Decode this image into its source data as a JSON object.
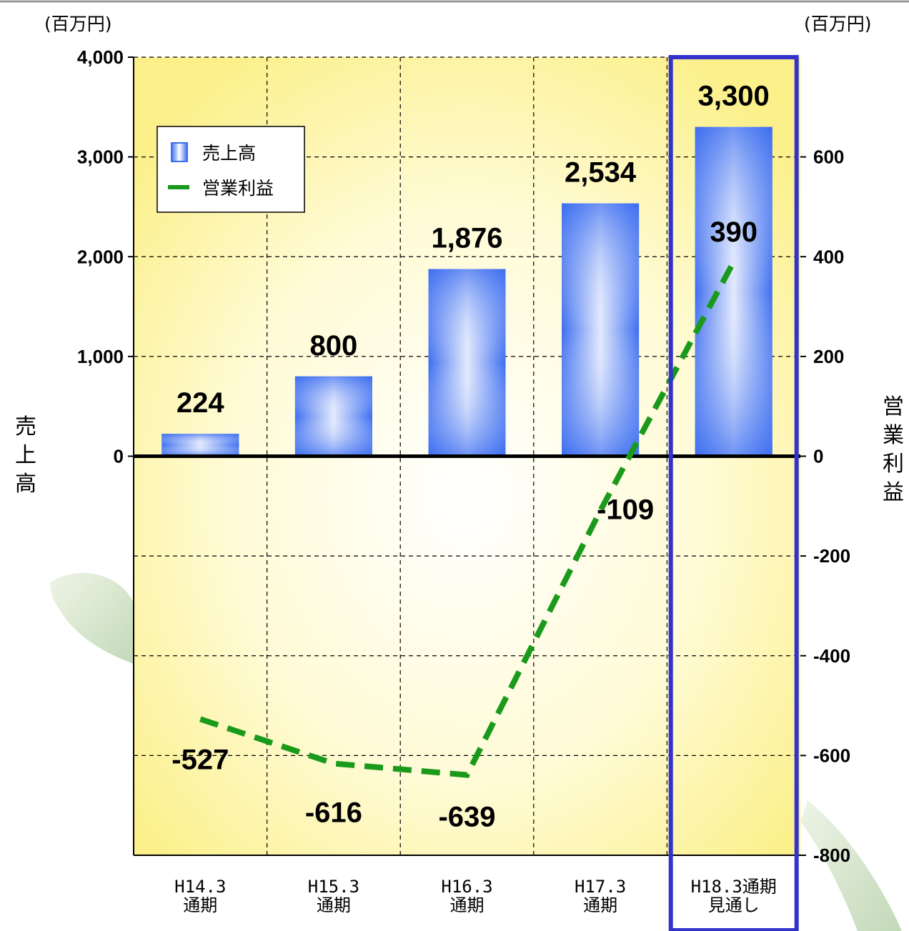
{
  "chart_data": {
    "type": "bar",
    "categories": [
      [
        "H14.3",
        "通期"
      ],
      [
        "H15.3",
        "通期"
      ],
      [
        "H16.3",
        "通期"
      ],
      [
        "H17.3",
        "通期"
      ],
      [
        "H18.3通期",
        "見通し"
      ]
    ],
    "series": [
      {
        "name": "売上高",
        "type": "bar",
        "axis": "left",
        "values": [
          224,
          800,
          1876,
          2534,
          3300
        ],
        "labels": [
          "224",
          "800",
          "1,876",
          "2,534",
          "3,300"
        ]
      },
      {
        "name": "営業利益",
        "type": "line",
        "style": "dashed",
        "axis": "right",
        "values": [
          -527,
          -616,
          -639,
          -109,
          390
        ],
        "labels": [
          "-527",
          "-616",
          "-639",
          "-109",
          "390"
        ]
      }
    ],
    "left_axis": {
      "title": "売上高",
      "unit": "(百万円)",
      "range": [
        -4000,
        4000
      ],
      "ticks": [
        0,
        1000,
        2000,
        3000,
        4000
      ],
      "tick_labels": [
        "0",
        "1,000",
        "2,000",
        "3,000",
        "4,000"
      ]
    },
    "right_axis": {
      "title": "営業利益",
      "unit": "(百万円)",
      "range": [
        -800,
        800
      ],
      "ticks": [
        -800,
        -600,
        -400,
        -200,
        0,
        200,
        400,
        600
      ],
      "tick_labels": [
        "-800",
        "-600",
        "-400",
        "-200",
        "0",
        "200",
        "400",
        "600"
      ]
    },
    "highlight_category": 4,
    "grid": true,
    "legend": {
      "position": "top-left",
      "entries": [
        "売上高",
        "営業利益"
      ]
    },
    "colors": {
      "bar": "#3d6ef0",
      "line": "#1a9a1a",
      "highlight": "#3333cc",
      "plot_bg": "#fdf6a8"
    }
  }
}
